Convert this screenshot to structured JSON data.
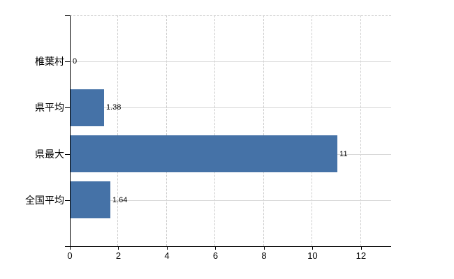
{
  "chart_data": {
    "type": "bar",
    "orientation": "horizontal",
    "title": "",
    "xlabel": "",
    "ylabel": "",
    "categories": [
      "椎葉村",
      "県平均",
      "県最大",
      "全国平均"
    ],
    "values": [
      0,
      1.38,
      11,
      1.64
    ],
    "value_labels": [
      "0",
      "1.38",
      "11",
      "1.64"
    ],
    "x_tick_labels": [
      "0",
      "2",
      "4",
      "6",
      "8",
      "10",
      "12"
    ],
    "x_tick_values": [
      0,
      2,
      4,
      6,
      8,
      10,
      12
    ],
    "xlim": [
      0,
      13.24
    ],
    "grid": "on",
    "legend_position": "none",
    "bar_color": "#4572a7",
    "gridline_solid_color": "#d9d9d9",
    "gridline_dashed_color": "#cdcdcd",
    "axis_color": "#000000",
    "label_color": "#000000",
    "background_color": "#ffffff"
  }
}
